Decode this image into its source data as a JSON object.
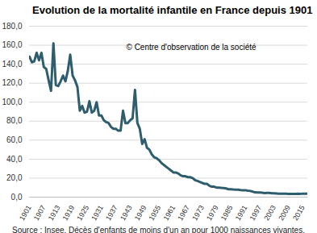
{
  "chart_data": {
    "type": "line",
    "title": "Evolution de la mortalité infantile en France depuis 1901",
    "annotation": "© Centre d'observation de la société",
    "caption": "Source : Insee. Décès d'enfants de moins d'un an pour 1000 naissances vivantes.",
    "x": [
      1901,
      1902,
      1903,
      1904,
      1905,
      1906,
      1907,
      1908,
      1909,
      1910,
      1911,
      1912,
      1913,
      1914,
      1915,
      1916,
      1917,
      1918,
      1919,
      1920,
      1921,
      1922,
      1923,
      1924,
      1925,
      1926,
      1927,
      1928,
      1929,
      1930,
      1931,
      1932,
      1933,
      1934,
      1935,
      1936,
      1937,
      1938,
      1939,
      1940,
      1941,
      1942,
      1943,
      1944,
      1945,
      1946,
      1947,
      1948,
      1949,
      1950,
      1951,
      1952,
      1953,
      1954,
      1955,
      1956,
      1957,
      1958,
      1959,
      1960,
      1961,
      1962,
      1963,
      1964,
      1965,
      1966,
      1967,
      1968,
      1969,
      1970,
      1971,
      1972,
      1973,
      1974,
      1975,
      1976,
      1977,
      1978,
      1979,
      1980,
      1981,
      1982,
      1983,
      1984,
      1985,
      1986,
      1987,
      1988,
      1989,
      1990,
      1991,
      1992,
      1993,
      1994,
      1995,
      1996,
      1997,
      1998,
      1999,
      2000,
      2001,
      2002,
      2003,
      2004,
      2005,
      2006,
      2007,
      2008,
      2009,
      2010,
      2011,
      2012,
      2013,
      2014,
      2015,
      2016,
      2017
    ],
    "values": [
      148,
      142,
      143,
      152,
      144,
      152,
      137,
      135,
      123,
      112,
      162,
      118,
      117,
      122,
      128,
      122,
      133,
      150,
      128,
      123,
      116,
      91,
      96,
      89,
      90,
      101,
      89,
      91,
      100,
      86,
      86,
      81,
      79,
      78,
      74,
      72,
      72,
      70,
      70,
      91,
      78,
      78,
      81,
      83,
      113,
      78,
      72,
      56,
      61,
      52,
      50,
      45,
      42,
      41,
      39,
      36,
      34,
      32,
      30,
      28,
      26,
      26,
      25,
      23,
      22,
      22,
      21,
      21,
      20,
      18,
      17,
      16,
      15,
      14,
      14,
      12,
      11,
      11,
      10,
      10,
      9.7,
      9.5,
      9.1,
      8.3,
      8.3,
      8.0,
      7.8,
      7.8,
      7.5,
      7.3,
      7.3,
      6.8,
      6.5,
      5.9,
      5.0,
      4.8,
      4.8,
      4.6,
      4.3,
      4.4,
      4.5,
      4.1,
      4.0,
      3.8,
      3.6,
      3.6,
      3.6,
      3.6,
      3.5,
      3.5,
      3.3,
      3.3,
      3.6,
      3.5,
      3.7,
      3.7,
      3.7
    ],
    "color": "#2e5d6e",
    "xlim": [
      1901,
      2017
    ],
    "xticks": [
      1901,
      1907,
      1913,
      1919,
      1925,
      1931,
      1937,
      1943,
      1949,
      1955,
      1961,
      1967,
      1973,
      1979,
      1985,
      1991,
      1997,
      2003,
      2009,
      2015
    ],
    "ylim": [
      0,
      180
    ],
    "yticks": [
      {
        "value": 0,
        "label": "0,0"
      },
      {
        "value": 20,
        "label": "20,0"
      },
      {
        "value": 40,
        "label": "40,0"
      },
      {
        "value": 60,
        "label": "60,0"
      },
      {
        "value": 80,
        "label": "80,0"
      },
      {
        "value": 100,
        "label": "100,0"
      },
      {
        "value": 120,
        "label": "120,0"
      },
      {
        "value": 140,
        "label": "140,0"
      },
      {
        "value": 160,
        "label": "160,0"
      },
      {
        "value": 180,
        "label": "180,0"
      }
    ],
    "grid": true
  }
}
